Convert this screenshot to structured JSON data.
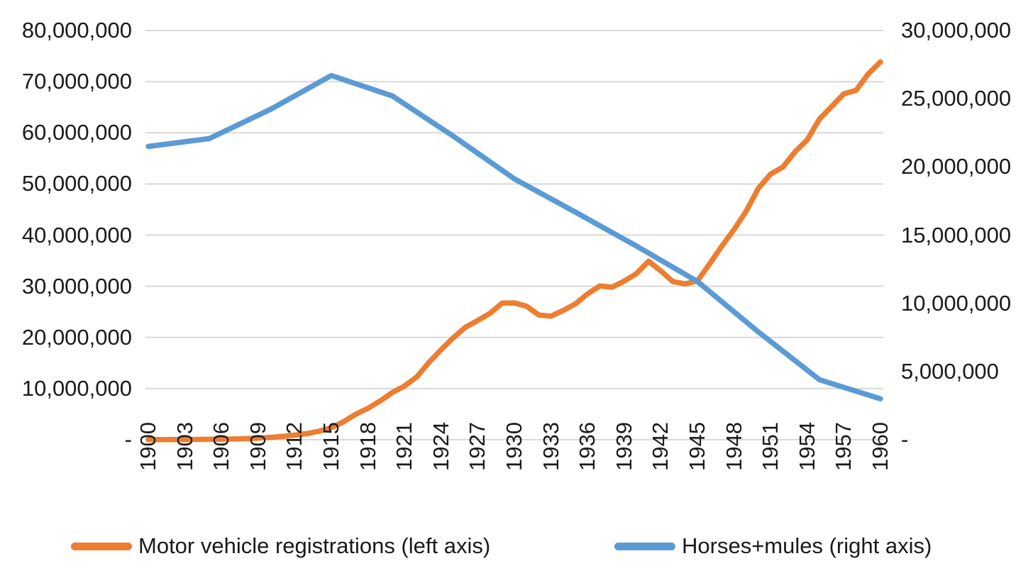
{
  "chart_data": {
    "type": "line",
    "title": "",
    "grid": true,
    "legend_position": "bottom",
    "x_axis": {
      "min_year": 1900,
      "max_year": 1960,
      "tick_labels": [
        "1900",
        "1903",
        "1906",
        "1909",
        "1912",
        "1915",
        "1918",
        "1921",
        "1924",
        "1927",
        "1930",
        "1933",
        "1936",
        "1939",
        "1942",
        "1945",
        "1948",
        "1951",
        "1954",
        "1957",
        "1960"
      ]
    },
    "left_axis": {
      "min": 0,
      "max": 80000000,
      "tick_step": 10000000,
      "tick_labels": [
        "80,000,000",
        "70,000,000",
        "60,000,000",
        "50,000,000",
        "40,000,000",
        "30,000,000",
        "20,000,000",
        "10,000,000",
        "-"
      ]
    },
    "right_axis": {
      "min": 0,
      "max": 30000000,
      "tick_step": 5000000,
      "tick_labels": [
        "30,000,000",
        "25,000,000",
        "20,000,000",
        "15,000,000",
        "10,000,000",
        "5,000,000",
        "-"
      ]
    },
    "series": [
      {
        "name": "Motor vehicle registrations (left axis)",
        "axis": "left",
        "color": "#ED7D31",
        "start_year": 1900,
        "year_interval": 1,
        "values": [
          8000,
          14800,
          23000,
          32920,
          54590,
          77400,
          105900,
          140300,
          194400,
          305950,
          458300,
          618727,
          901596,
          1190393,
          1664003,
          2332426,
          3512996,
          4983340,
          6146617,
          7565446,
          9239161,
          10493666,
          12273931,
          15102105,
          17612997,
          19940724,
          22001393,
          23303551,
          24688824,
          26704825,
          26749853,
          26088648,
          24391326,
          24159265,
          25262215,
          26546281,
          28506744,
          30059462,
          29807748,
          31009967,
          32453233,
          34894151,
          32999306,
          30888284,
          30479574,
          31035420,
          34373134,
          37843478,
          41085477,
          44690916,
          49161691,
          51944197,
          53301329,
          56279864,
          58622547,
          62688792,
          65153810,
          67612818,
          68296594,
          71514000,
          73868565
        ]
      },
      {
        "name": "Horses+mules (right axis)",
        "axis": "right",
        "color": "#5B9BD5",
        "start_year": 1900,
        "year_interval": 5,
        "values": [
          21500000,
          22077000,
          24211000,
          26700000,
          25199000,
          22250000,
          19124000,
          16683000,
          14200000,
          11600000,
          7900000,
          4400000,
          3000000
        ]
      }
    ]
  },
  "colors": {
    "gridline": "#D9D9D9",
    "axis_text": "#1a1a1a",
    "background": "#ffffff",
    "motor_vehicles_line": "#ED7D31",
    "horses_mules_line": "#5B9BD5"
  }
}
